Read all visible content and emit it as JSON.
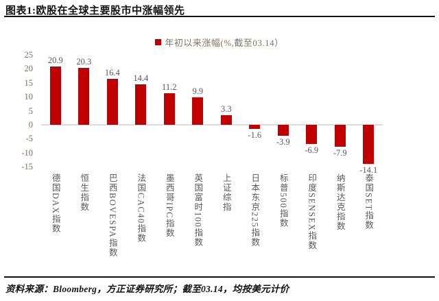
{
  "header": {
    "title": "图表1:欧股在全球主要股市中涨幅领先"
  },
  "chart_data": {
    "type": "bar",
    "title": "",
    "legend": "年初以来涨幅(%,截至03.14）",
    "legend_position": "top-center",
    "categories": [
      "德国DAX指数",
      "恒生指数",
      "巴西BOVESPA指数",
      "法国CAC40指数",
      "墨西哥IPC指数",
      "英国富时100指数",
      "上证综指",
      "日本东京225指数",
      "标普500指数",
      "印度SENSEX指数",
      "纳斯达克指数",
      "泰国SET指数"
    ],
    "values": [
      20.9,
      20.3,
      16.4,
      14.4,
      11.2,
      9.9,
      3.3,
      -1.6,
      -3.9,
      -6.9,
      -7.9,
      -14.1
    ],
    "xlabel": "",
    "ylabel": "",
    "ylim": [
      -15,
      25
    ],
    "ytick_step": 5,
    "grid": false,
    "bar_color": "#c00000",
    "zero_line_color": "#dcdcdc"
  },
  "footer": {
    "source": "资料来源：Bloomberg，方正证券研究所；截至03.14，均按美元计价"
  }
}
